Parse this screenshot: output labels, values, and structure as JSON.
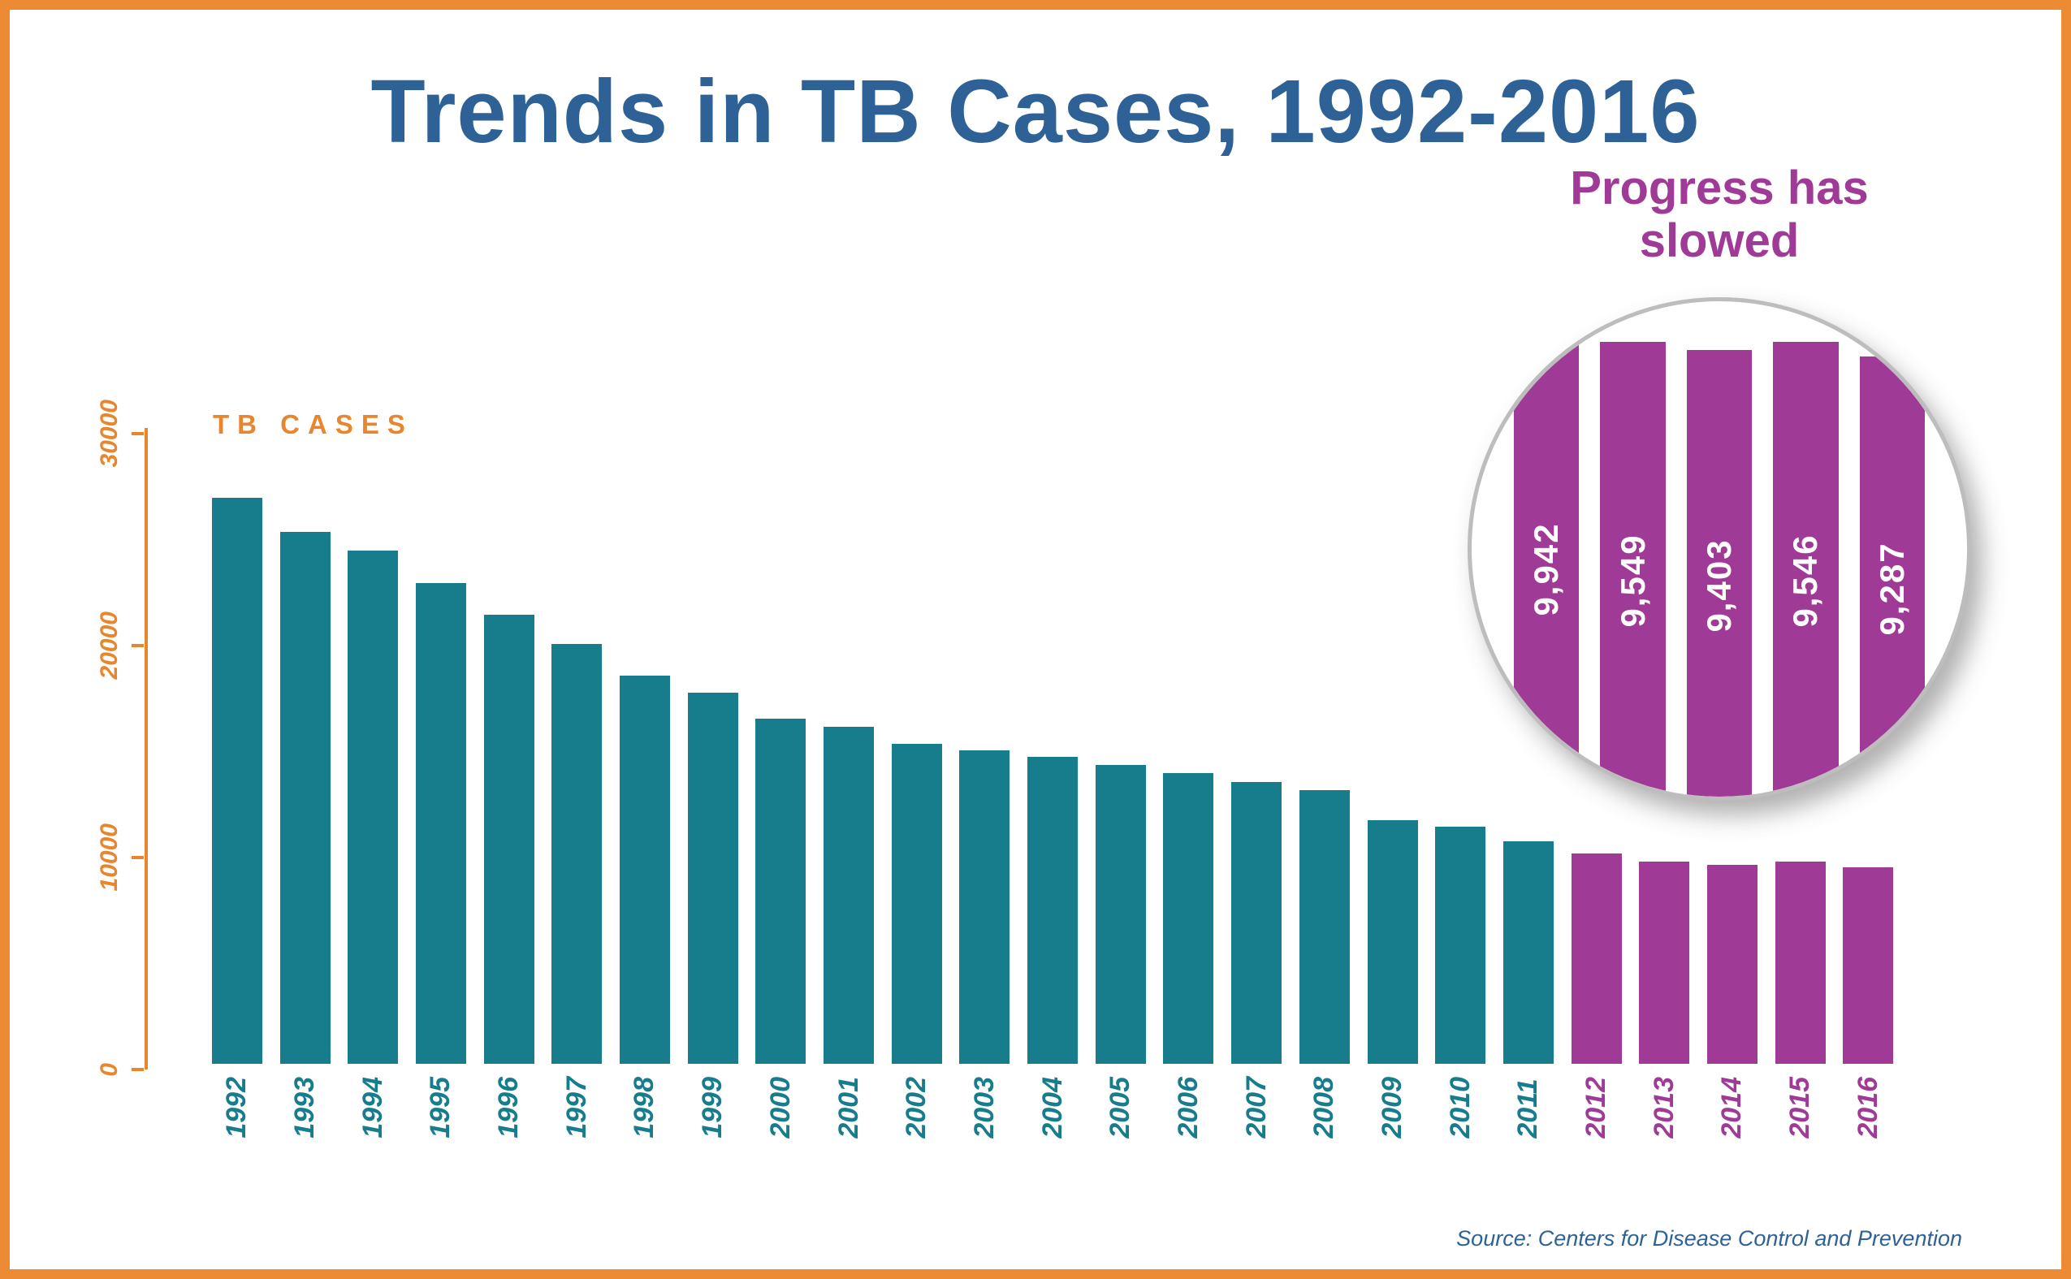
{
  "title": "Trends in TB Cases, 1992-2016",
  "y_axis_label": "TB CASES",
  "source": "Source: Centers for Disease Control and Prevention",
  "callout": {
    "title": "Progress has slowed",
    "years": [
      "2012",
      "2013",
      "2014",
      "2015",
      "2016"
    ],
    "labels": [
      "9,942",
      "9,549",
      "9,403",
      "9,546",
      "9,287"
    ]
  },
  "colors": {
    "frame_orange": "#EC8B33",
    "axis_orange": "#E8862D",
    "title_blue": "#2E6296",
    "bar_teal": "#177D8C",
    "bar_purple": "#9F3A96",
    "lens_ring_gray": "#BDBDBD",
    "lens_label_white": "#FFFFFF"
  },
  "chart_data": {
    "type": "bar",
    "title": "Trends in TB Cases, 1992-2016",
    "xlabel": "",
    "ylabel": "TB CASES",
    "ylim": [
      0,
      30000
    ],
    "yticks": [
      0,
      10000,
      20000,
      30000
    ],
    "grid": false,
    "legend": "none",
    "categories": [
      "1992",
      "1993",
      "1994",
      "1995",
      "1996",
      "1997",
      "1998",
      "1999",
      "2000",
      "2001",
      "2002",
      "2003",
      "2004",
      "2005",
      "2006",
      "2007",
      "2008",
      "2009",
      "2010",
      "2011",
      "2012",
      "2013",
      "2014",
      "2015",
      "2016"
    ],
    "values": [
      26700,
      25100,
      24200,
      22700,
      21200,
      19800,
      18300,
      17500,
      16300,
      15900,
      15100,
      14800,
      14500,
      14100,
      13700,
      13300,
      12900,
      11500,
      11200,
      10500,
      9942,
      9549,
      9403,
      9546,
      9287
    ],
    "highlight_categories": [
      "2012",
      "2013",
      "2014",
      "2015",
      "2016"
    ],
    "annotations": [
      "Progress has slowed"
    ]
  }
}
